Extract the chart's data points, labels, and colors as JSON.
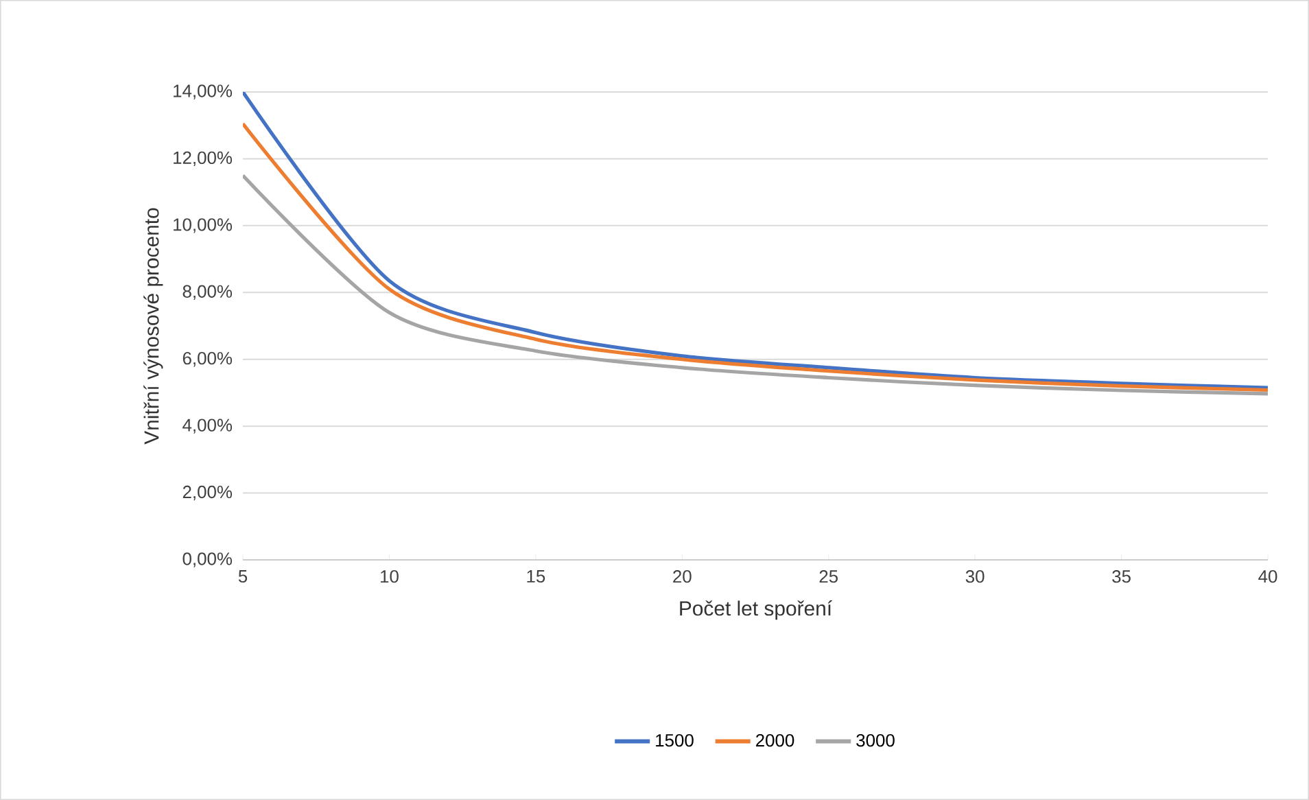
{
  "chart_data": {
    "type": "line",
    "xlabel": "Počet let spoření",
    "ylabel": "Vnitřní výnosové procento",
    "x": [
      5,
      10,
      15,
      20,
      25,
      30,
      35,
      40
    ],
    "series": [
      {
        "name": "1500",
        "color": "#4472c4",
        "values": [
          14.0,
          8.35,
          6.8,
          6.1,
          5.75,
          5.45,
          5.28,
          5.15
        ]
      },
      {
        "name": "2000",
        "color": "#ed7d31",
        "values": [
          13.05,
          8.1,
          6.6,
          6.0,
          5.65,
          5.38,
          5.2,
          5.08
        ]
      },
      {
        "name": "3000",
        "color": "#a5a5a5",
        "values": [
          11.5,
          7.4,
          6.25,
          5.75,
          5.45,
          5.22,
          5.07,
          4.97
        ]
      }
    ],
    "xlim": [
      5,
      40
    ],
    "xticks": [
      5,
      10,
      15,
      20,
      25,
      30,
      35,
      40
    ],
    "ylim": [
      0,
      14
    ],
    "yticks": [
      {
        "value": 0,
        "label": "0,00%"
      },
      {
        "value": 2,
        "label": "2,00%"
      },
      {
        "value": 4,
        "label": "4,00%"
      },
      {
        "value": 6,
        "label": "6,00%"
      },
      {
        "value": 8,
        "label": "8,00%"
      },
      {
        "value": 10,
        "label": "10,00%"
      },
      {
        "value": 12,
        "label": "12,00%"
      },
      {
        "value": 14,
        "label": "14,00%"
      }
    ],
    "grid": "y",
    "legend": "bottom",
    "marker": "none",
    "line_style": "solid"
  }
}
